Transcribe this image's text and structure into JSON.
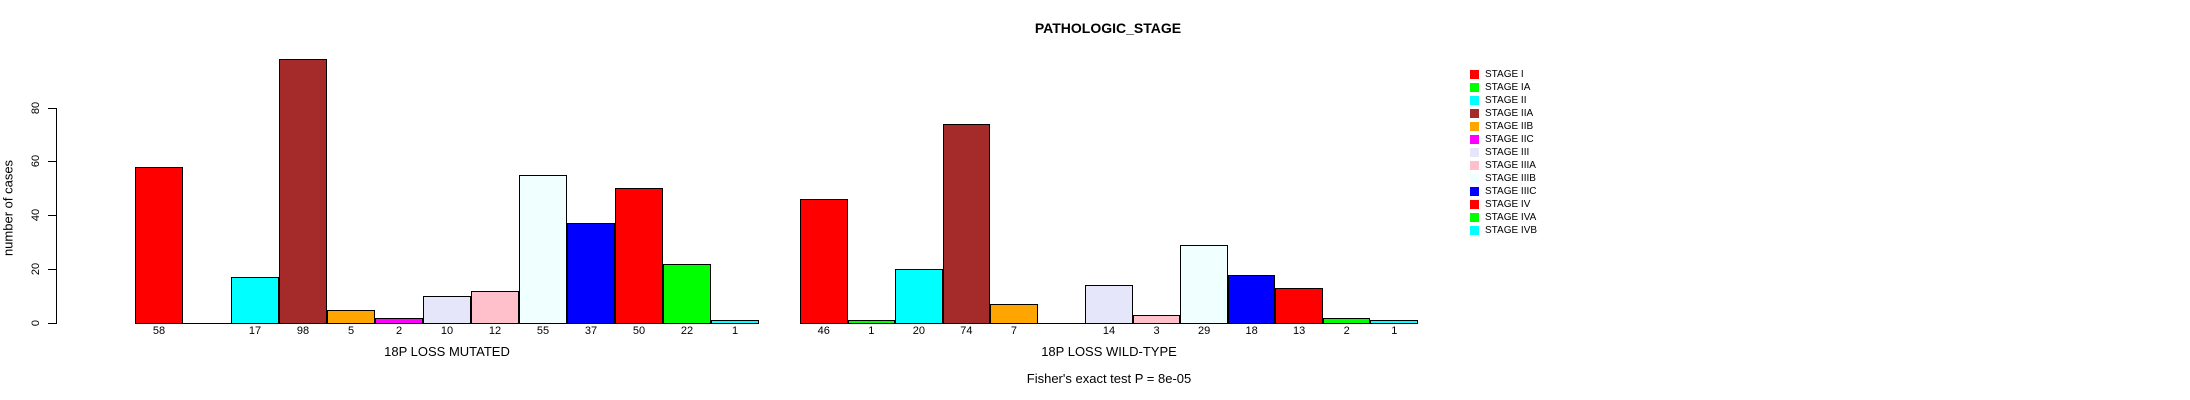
{
  "title": "PATHOLOGIC_STAGE",
  "chart_data": {
    "type": "bar",
    "title": "PATHOLOGIC_STAGE",
    "ylabel": "number of cases",
    "ylim": [
      0,
      98
    ],
    "yticks": [
      0,
      20,
      40,
      60,
      80
    ],
    "grid": false,
    "legend_position": "right",
    "categories": [
      "STAGE I",
      "STAGE IA",
      "STAGE II",
      "STAGE IIA",
      "STAGE IIB",
      "STAGE IIC",
      "STAGE III",
      "STAGE IIIA",
      "STAGE IIIB",
      "STAGE IIIC",
      "STAGE IV",
      "STAGE IVA",
      "STAGE IVB"
    ],
    "colors": [
      "#FF0000",
      "#00FF00",
      "#00FFFF",
      "#A52A2A",
      "#FFA500",
      "#FF00FF",
      "#E6E6FA",
      "#FFC0CB",
      "#F0FFFF",
      "#0000FF",
      "#FF0000",
      "#00FF00",
      "#00FFFF"
    ],
    "series": [
      {
        "name": "18P LOSS MUTATED",
        "values": [
          58,
          0,
          17,
          98,
          5,
          2,
          10,
          12,
          55,
          37,
          50,
          22,
          1
        ]
      },
      {
        "name": "18P LOSS WILD-TYPE",
        "values": [
          46,
          1,
          20,
          74,
          7,
          0,
          14,
          3,
          29,
          18,
          13,
          2,
          1
        ]
      }
    ],
    "bar_value_labels": "counts shown under each nonzero bar",
    "annotation": "Fisher's exact test P = 8e-05"
  }
}
